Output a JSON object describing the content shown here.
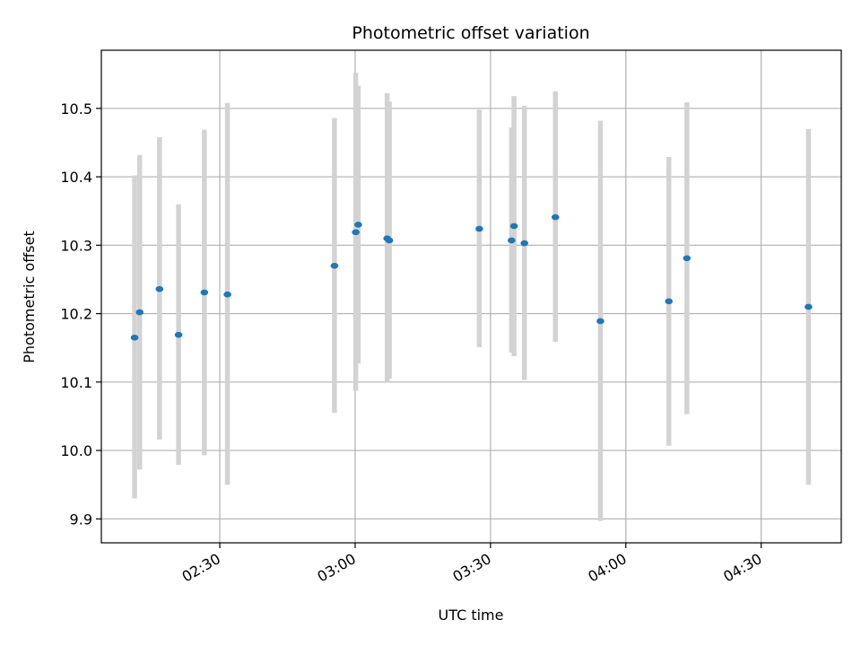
{
  "chart_data": {
    "type": "scatter",
    "title": "Photometric offset variation",
    "xlabel": "UTC time",
    "ylabel": "Photometric offset",
    "x_tick_labels": [
      "02:30",
      "03:00",
      "03:30",
      "04:00",
      "04:30"
    ],
    "y_tick_labels": [
      "9.9",
      "10.0",
      "10.1",
      "10.2",
      "10.3",
      "10.4",
      "10.5"
    ],
    "xlim": [
      "02:03:45",
      "04:47:45"
    ],
    "ylim": [
      9.865,
      10.585
    ],
    "grid": true,
    "colors": {
      "points": "#1f77b4",
      "error_bars": "#d3d3d3",
      "grid": "#b0b0b0"
    },
    "points": [
      {
        "t": "02:11:07",
        "y": 10.165,
        "lo": 9.93,
        "hi": 10.402
      },
      {
        "t": "02:12:15",
        "y": 10.202,
        "lo": 9.972,
        "hi": 10.432
      },
      {
        "t": "02:16:38",
        "y": 10.236,
        "lo": 10.016,
        "hi": 10.458
      },
      {
        "t": "02:20:52",
        "y": 10.169,
        "lo": 9.979,
        "hi": 10.36
      },
      {
        "t": "02:26:35",
        "y": 10.231,
        "lo": 9.993,
        "hi": 10.469
      },
      {
        "t": "02:31:42",
        "y": 10.228,
        "lo": 9.95,
        "hi": 10.508
      },
      {
        "t": "02:55:25",
        "y": 10.27,
        "lo": 10.055,
        "hi": 10.486
      },
      {
        "t": "03:00:08",
        "y": 10.319,
        "lo": 10.087,
        "hi": 10.552
      },
      {
        "t": "03:00:41",
        "y": 10.33,
        "lo": 10.127,
        "hi": 10.533
      },
      {
        "t": "03:07:06",
        "y": 10.31,
        "lo": 10.1,
        "hi": 10.522
      },
      {
        "t": "03:07:35",
        "y": 10.307,
        "lo": 10.105,
        "hi": 10.51
      },
      {
        "t": "03:27:31",
        "y": 10.324,
        "lo": 10.151,
        "hi": 10.498
      },
      {
        "t": "03:34:40",
        "y": 10.307,
        "lo": 10.143,
        "hi": 10.472
      },
      {
        "t": "03:35:13",
        "y": 10.328,
        "lo": 10.138,
        "hi": 10.518
      },
      {
        "t": "03:37:31",
        "y": 10.303,
        "lo": 10.103,
        "hi": 10.504
      },
      {
        "t": "03:44:23",
        "y": 10.341,
        "lo": 10.159,
        "hi": 10.525
      },
      {
        "t": "03:54:22",
        "y": 10.189,
        "lo": 9.897,
        "hi": 10.482
      },
      {
        "t": "04:09:32",
        "y": 10.218,
        "lo": 10.007,
        "hi": 10.429
      },
      {
        "t": "04:13:32",
        "y": 10.281,
        "lo": 10.053,
        "hi": 10.509
      },
      {
        "t": "04:40:29",
        "y": 10.21,
        "lo": 9.95,
        "hi": 10.47
      }
    ]
  }
}
